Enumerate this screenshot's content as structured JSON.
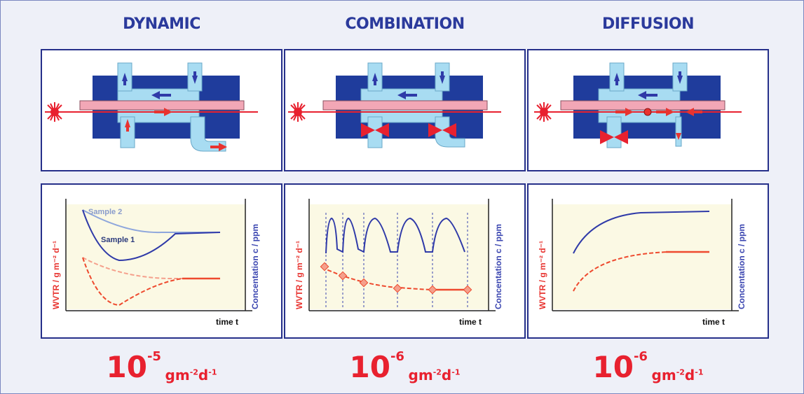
{
  "columns": [
    {
      "title": "DYNAMIC",
      "rate": {
        "base": "10",
        "exponent": "-5",
        "unit": "gm",
        "unit_exp1": "-2",
        "unit_d": "d",
        "unit_exp2": "-1"
      },
      "graph": {
        "y_left_label": "WVTR / g m⁻² d⁻¹",
        "y_right_label": "Concentation c / ppm",
        "x_label": "time t",
        "sample2": "Sample 2",
        "sample1": "Sample 1"
      }
    },
    {
      "title": "COMBINATION",
      "rate": {
        "base": "10",
        "exponent": "-6",
        "unit": "gm",
        "unit_exp1": "-2",
        "unit_d": "d",
        "unit_exp2": "-1"
      },
      "graph": {
        "y_left_label": "WVTR / g m⁻² d⁻¹",
        "y_right_label": "Concentation c / ppm",
        "x_label": "time t"
      }
    },
    {
      "title": "DIFFUSION",
      "rate": {
        "base": "10",
        "exponent": "-6",
        "unit": "gm",
        "unit_exp1": "-2",
        "unit_d": "d",
        "unit_exp2": "-1"
      },
      "graph": {
        "y_left_label": "WVTR / g m⁻² d⁻¹",
        "y_right_label": "Concentation c / ppm",
        "x_label": "time t"
      }
    }
  ],
  "colors": {
    "title": "#2b3a9c",
    "rate": "#e8212f",
    "chamber_dark": "#1f3c9c",
    "chamber_light": "#a8dcf2",
    "sample_strip": "#f2a7b6",
    "laser": "#e8212f",
    "valve": "#e8212f",
    "graph_bg": "#fbf9e4",
    "curve_blue": "#2f3aa8",
    "curve_red": "#ee4a2e"
  }
}
